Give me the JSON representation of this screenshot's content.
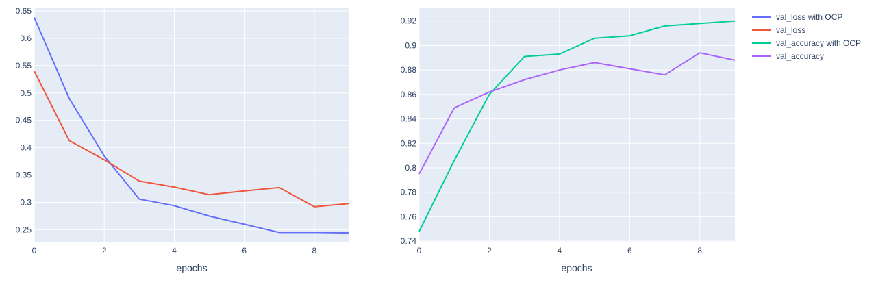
{
  "chart_data": [
    {
      "type": "line",
      "id": "loss",
      "xlabel": "epochs",
      "ylabel": "",
      "x": [
        0,
        1,
        2,
        3,
        4,
        5,
        6,
        7,
        8,
        9
      ],
      "xlim": [
        0,
        9
      ],
      "ylim": [
        0.228,
        0.655
      ],
      "xticks": [
        0,
        2,
        4,
        6,
        8
      ],
      "xtick_labels": [
        "0",
        "2",
        "4",
        "6",
        "8"
      ],
      "yticks": [
        0.25,
        0.3,
        0.35,
        0.4,
        0.45,
        0.5,
        0.55,
        0.6,
        0.65
      ],
      "ytick_labels": [
        "0.25",
        "0.3",
        "0.35",
        "0.4",
        "0.45",
        "0.5",
        "0.55",
        "0.6",
        "0.65"
      ],
      "grid": true,
      "series": [
        {
          "name": "val_loss with OCP",
          "color": "#636efa",
          "values": [
            0.638,
            0.49,
            0.385,
            0.306,
            0.294,
            0.275,
            0.26,
            0.245,
            0.245,
            0.244
          ]
        },
        {
          "name": "val_loss",
          "color": "#ef553b",
          "values": [
            0.54,
            0.413,
            0.378,
            0.339,
            0.328,
            0.314,
            0.321,
            0.327,
            0.292,
            0.298
          ]
        }
      ]
    },
    {
      "type": "line",
      "id": "accuracy",
      "xlabel": "epochs",
      "ylabel": "",
      "x": [
        0,
        1,
        2,
        3,
        4,
        5,
        6,
        7,
        8,
        9
      ],
      "xlim": [
        0,
        9
      ],
      "ylim": [
        0.7395,
        0.9305
      ],
      "xticks": [
        0,
        2,
        4,
        6,
        8
      ],
      "xtick_labels": [
        "0",
        "2",
        "4",
        "6",
        "8"
      ],
      "yticks": [
        0.74,
        0.76,
        0.78,
        0.8,
        0.82,
        0.84,
        0.86,
        0.88,
        0.9,
        0.92
      ],
      "ytick_labels": [
        "0.74",
        "0.76",
        "0.78",
        "0.8",
        "0.82",
        "0.84",
        "0.86",
        "0.88",
        "0.9",
        "0.92"
      ],
      "grid": true,
      "series": [
        {
          "name": "val_accuracy with OCP",
          "color": "#00cc96",
          "values": [
            0.748,
            0.806,
            0.86,
            0.891,
            0.893,
            0.906,
            0.908,
            0.916,
            0.918,
            0.92
          ]
        },
        {
          "name": "val_accuracy",
          "color": "#ab63fa",
          "values": [
            0.795,
            0.849,
            0.862,
            0.872,
            0.88,
            0.886,
            0.881,
            0.876,
            0.894,
            0.888
          ]
        }
      ]
    }
  ],
  "legend": {
    "placement": "top-right",
    "entries": [
      {
        "label": "val_loss with OCP",
        "color": "#636efa"
      },
      {
        "label": "val_loss",
        "color": "#ef553b"
      },
      {
        "label": "val_accuracy with OCP",
        "color": "#00cc96"
      },
      {
        "label": "val_accuracy",
        "color": "#ab63fa"
      }
    ]
  },
  "style": {
    "plot_bg": "#e5ecf6",
    "grid_color": "#ffffff",
    "text_color": "#2a3f5f"
  }
}
